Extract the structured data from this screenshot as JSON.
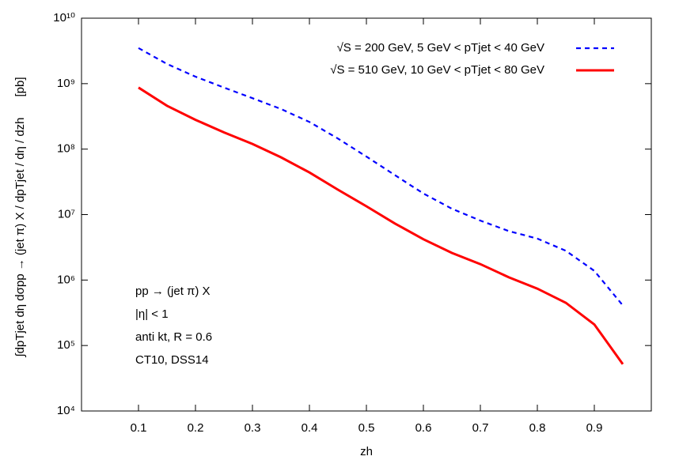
{
  "chart_data": {
    "type": "line",
    "xlabel": "zh",
    "ylabel": "∫dpTjet dη dσpp → (jet π) X / dpTjet / dη / dzh",
    "yunit": "[pb]",
    "x": [
      0.1,
      0.15,
      0.2,
      0.25,
      0.3,
      0.35,
      0.4,
      0.45,
      0.5,
      0.55,
      0.6,
      0.65,
      0.7,
      0.75,
      0.8,
      0.85,
      0.9,
      0.95
    ],
    "series": [
      {
        "name": "√S = 200 GeV, 5 GeV < pTjet < 40 GeV",
        "color": "#0000ff",
        "line_style": "dashed",
        "values": [
          3500000000,
          2000000000,
          1280000000,
          870000000,
          600000000,
          410000000,
          260000000,
          145000000,
          77000000,
          40000000,
          21000000,
          12300000,
          8100000,
          5600000,
          4300000,
          2800000,
          1380000,
          410000
        ]
      },
      {
        "name": "√S = 510 GeV, 10 GeV < pTjet < 80 GeV",
        "color": "#ff0000",
        "line_style": "solid",
        "values": [
          870000000,
          460000000,
          280000000,
          180000000,
          120000000,
          75000000,
          44000000,
          24000000,
          13400000,
          7300000,
          4200000,
          2600000,
          1750000,
          1100000,
          740000,
          450000,
          210000,
          52000
        ]
      }
    ],
    "annotations": [
      "pp → (jet π) X",
      "|η| < 1",
      "anti kt, R = 0.6",
      "CT10, DSS14"
    ],
    "xlim": [
      0,
      1
    ],
    "xticks": [
      0.1,
      0.2,
      0.3,
      0.4,
      0.5,
      0.6,
      0.7,
      0.8,
      0.9
    ],
    "ylim": [
      10000,
      10000000000
    ],
    "yscale": "log",
    "yticks": [
      {
        "value": 10000,
        "label": "10⁴"
      },
      {
        "value": 100000,
        "label": "10⁵"
      },
      {
        "value": 1000000,
        "label": "10⁶"
      },
      {
        "value": 10000000,
        "label": "10⁷"
      },
      {
        "value": 100000000,
        "label": "10⁸"
      },
      {
        "value": 1000000000,
        "label": "10⁹"
      },
      {
        "value": 10000000000,
        "label": "10¹⁰"
      }
    ],
    "legend": "top-right"
  }
}
